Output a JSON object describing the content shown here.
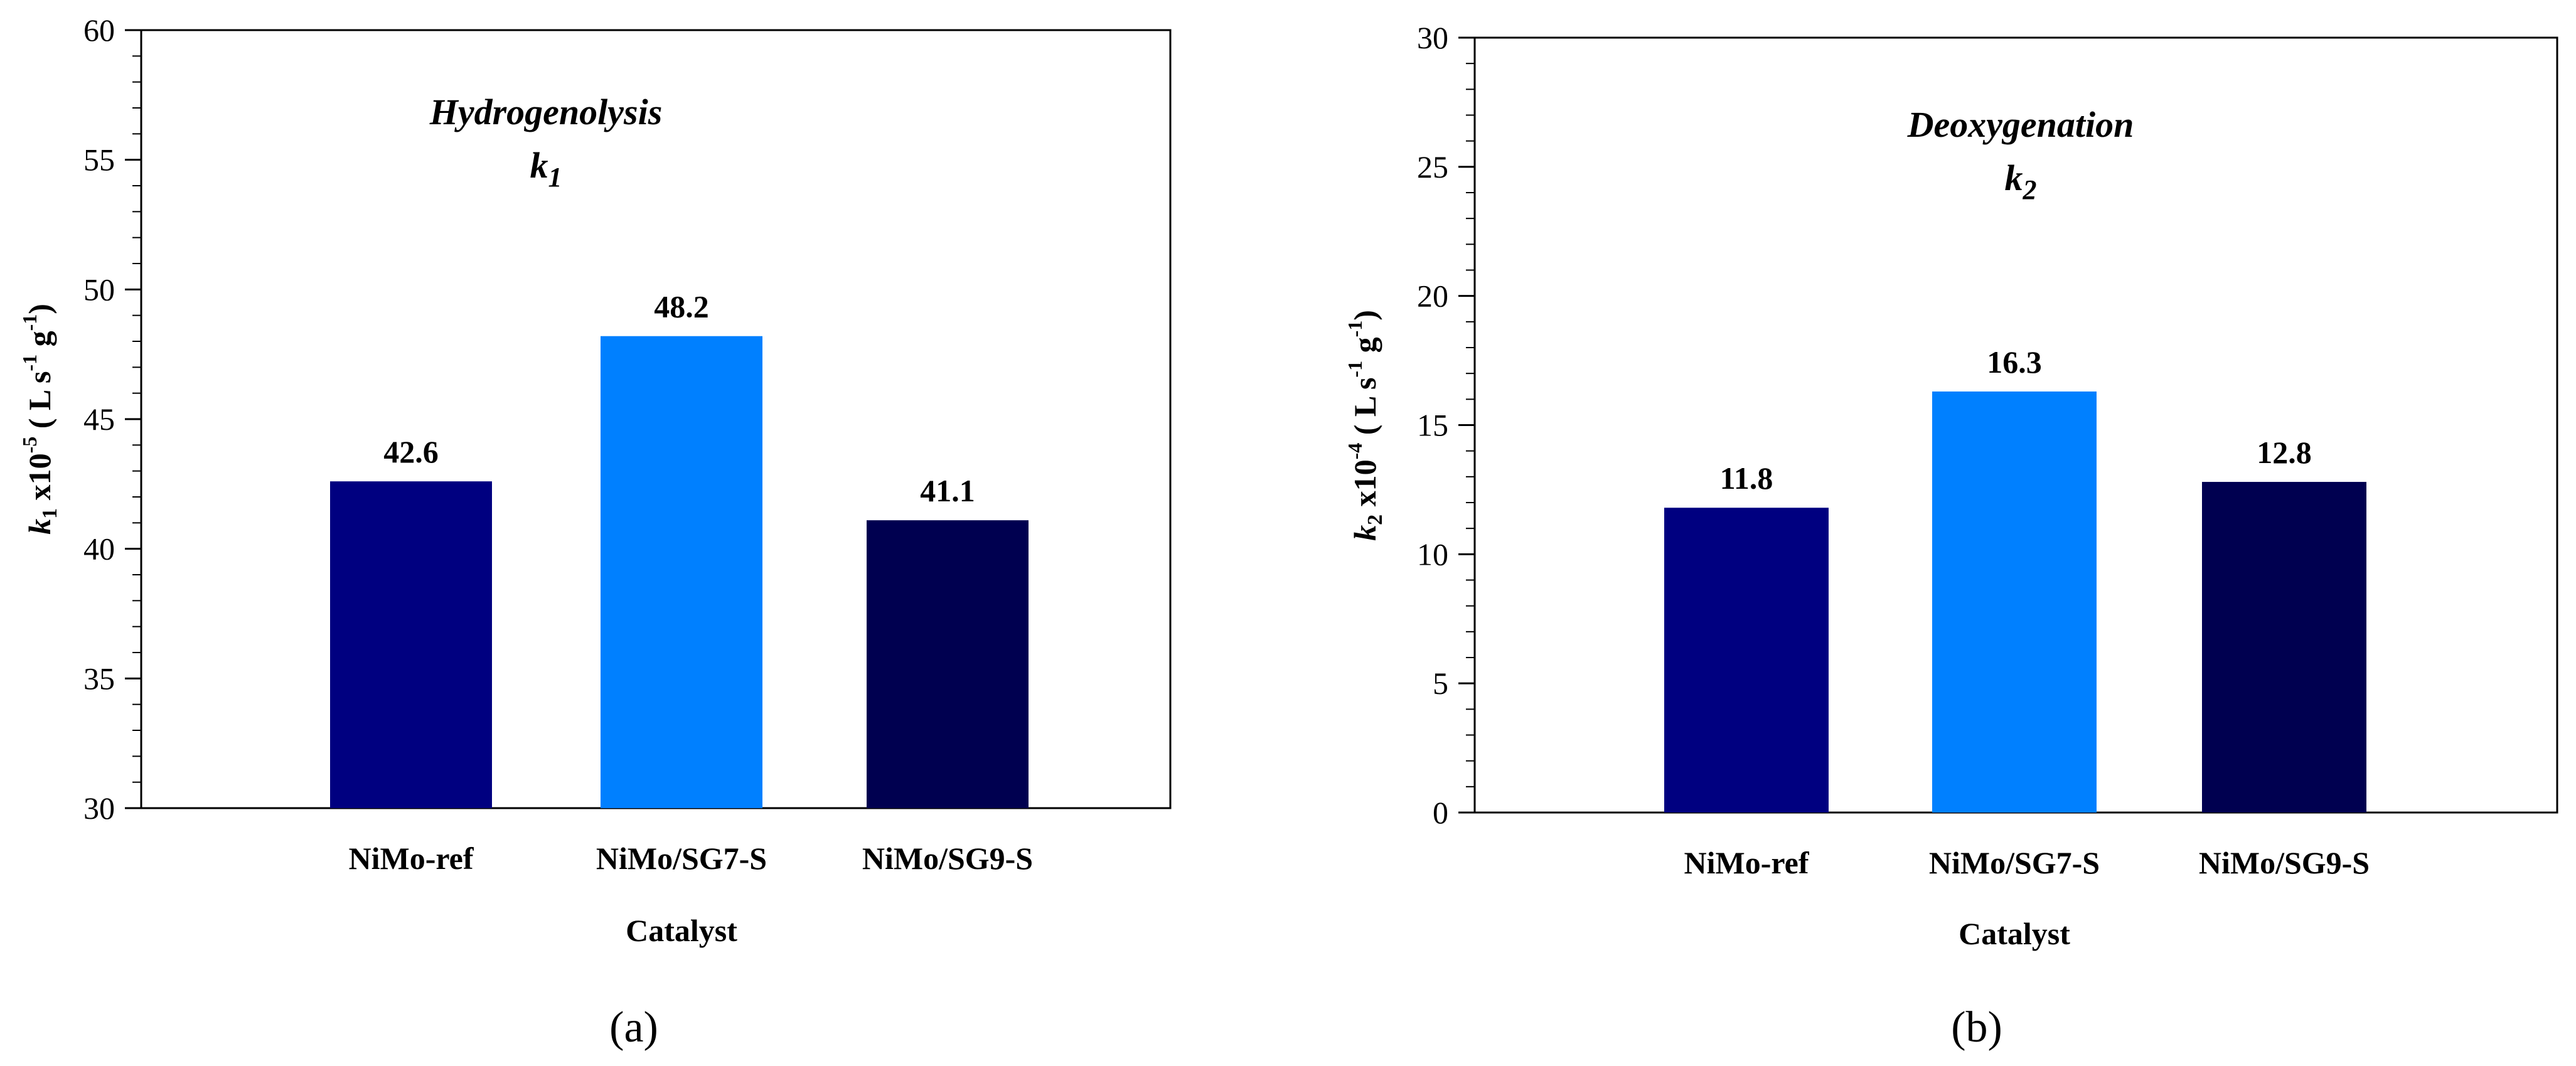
{
  "chart_data": [
    {
      "type": "bar",
      "panel_label": "(a)",
      "annotation": {
        "line1": "Hydrogenolysis",
        "symbol": "k",
        "subscript": "1"
      },
      "xlabel": "Catalyst",
      "ylabel": {
        "symbol": "k",
        "subscript": "1",
        "mid": " x10",
        "exp": "-5",
        "unit_open": "  ( L s",
        "unit_exp1": "-1",
        "unit_mid": " g",
        "unit_exp2": "-1",
        "unit_close": ")"
      },
      "categories": [
        "NiMo-ref",
        "NiMo/SG7-S",
        "NiMo/SG9-S"
      ],
      "values": [
        42.6,
        48.2,
        41.1
      ],
      "value_labels": [
        "42.6",
        "48.2",
        "41.1"
      ],
      "colors": [
        "#000080",
        "#0080ff",
        "#000050"
      ],
      "ylim": [
        30,
        60
      ],
      "yticks": [
        30,
        35,
        40,
        45,
        50,
        55,
        60
      ],
      "yticks_minor_step": 1,
      "grid": false
    },
    {
      "type": "bar",
      "panel_label": "(b)",
      "annotation": {
        "line1": "Deoxygenation",
        "symbol": "k",
        "subscript": "2"
      },
      "xlabel": "Catalyst",
      "ylabel": {
        "symbol": "k",
        "subscript": "2",
        "mid": " x10",
        "exp": "-4",
        "unit_open": "  ( L s",
        "unit_exp1": "-1",
        "unit_mid": " g",
        "unit_exp2": "-1",
        "unit_close": ")"
      },
      "categories": [
        "NiMo-ref",
        "NiMo/SG7-S",
        "NiMo/SG9-S"
      ],
      "values": [
        11.8,
        16.3,
        12.8
      ],
      "value_labels": [
        "11.8",
        "16.3",
        "12.8"
      ],
      "colors": [
        "#000080",
        "#0080ff",
        "#000050"
      ],
      "ylim": [
        0,
        30
      ],
      "yticks": [
        0,
        5,
        10,
        15,
        20,
        25,
        30
      ],
      "yticks_minor_step": 1,
      "grid": false
    }
  ]
}
